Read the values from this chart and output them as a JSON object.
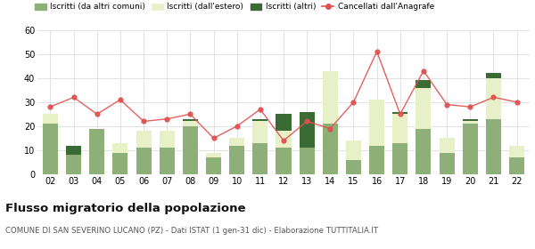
{
  "years": [
    "02",
    "03",
    "04",
    "05",
    "06",
    "07",
    "08",
    "09",
    "10",
    "11",
    "12",
    "13",
    "14",
    "15",
    "16",
    "17",
    "18",
    "19",
    "20",
    "21",
    "22"
  ],
  "iscritti_altri_comuni": [
    21,
    8,
    19,
    9,
    11,
    11,
    20,
    7,
    12,
    13,
    11,
    11,
    21,
    6,
    12,
    13,
    19,
    9,
    21,
    23,
    7
  ],
  "iscritti_estero": [
    4,
    0,
    0,
    4,
    7,
    7,
    2,
    2,
    3,
    9,
    7,
    0,
    22,
    8,
    19,
    12,
    17,
    6,
    1,
    17,
    5
  ],
  "iscritti_altri": [
    0,
    4,
    0,
    0,
    0,
    0,
    1,
    0,
    0,
    1,
    7,
    15,
    0,
    0,
    0,
    1,
    3,
    0,
    1,
    2,
    0
  ],
  "cancellati": [
    28,
    32,
    25,
    31,
    22,
    23,
    25,
    15,
    20,
    27,
    14,
    22,
    19,
    30,
    51,
    25,
    43,
    29,
    28,
    32,
    30
  ],
  "color_altri_comuni": "#8faf78",
  "color_estero": "#e8f0c8",
  "color_altri": "#3a6b35",
  "color_cancellati": "#e05050",
  "ylim": [
    0,
    60
  ],
  "yticks": [
    0,
    10,
    20,
    30,
    40,
    50,
    60
  ],
  "title": "Flusso migratorio della popolazione",
  "subtitle": "COMUNE DI SAN SEVERINO LUCANO (PZ) - Dati ISTAT (1 gen-31 dic) - Elaborazione TUTTITALIA.IT",
  "legend_labels": [
    "Iscritti (da altri comuni)",
    "Iscritti (dall'estero)",
    "Iscritti (altri)",
    "Cancellati dall'Anagrafe"
  ],
  "background_color": "#ffffff",
  "grid_color": "#d8d8d8"
}
